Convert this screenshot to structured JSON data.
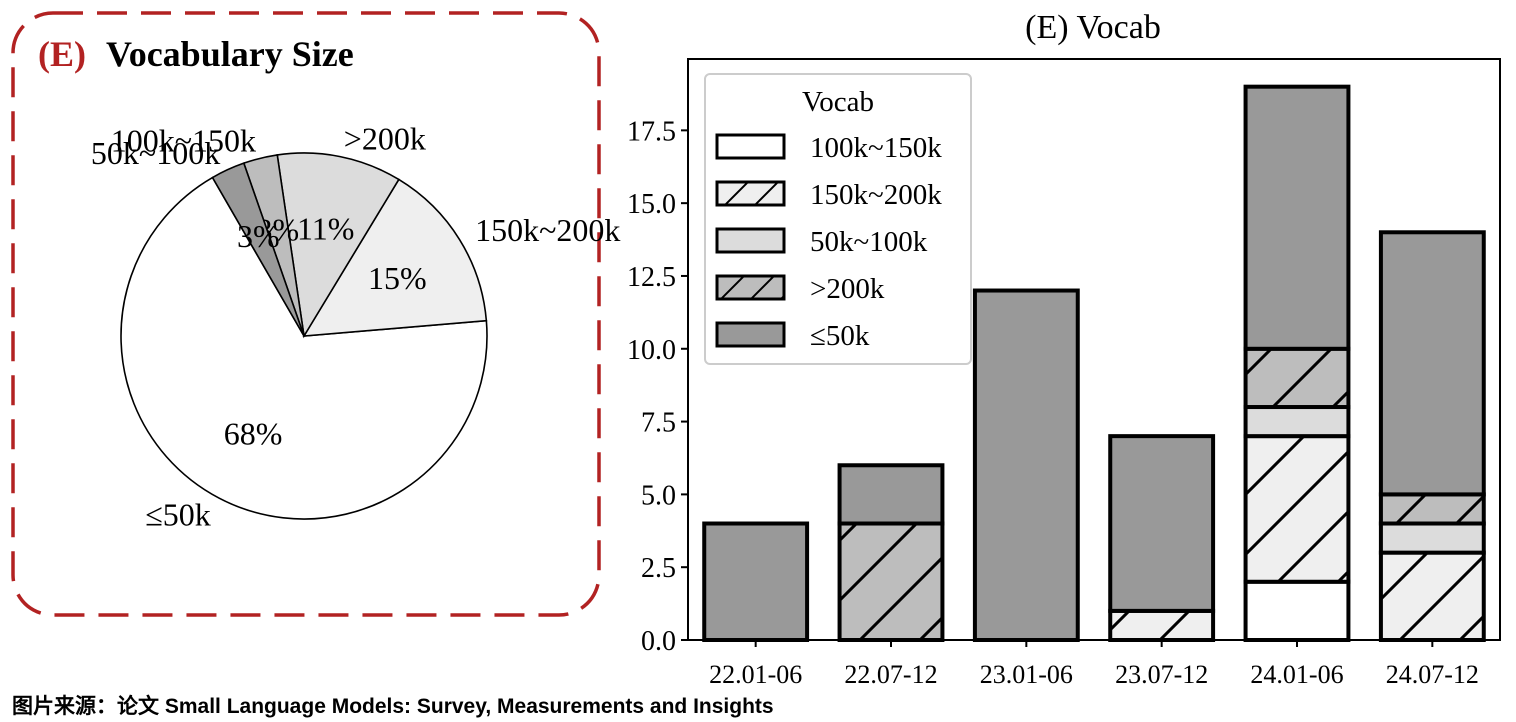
{
  "colors": {
    "frame_accent": "#b22222",
    "series": {
      "100k~150k": "#ffffff",
      "150k~200k": "#efefef",
      "50k~100k": "#dcdcdc",
      ">200k": "#bdbdbd",
      "≤50k": "#999999"
    }
  },
  "panel_title": {
    "tag": "(E)",
    "text": "Vocabulary Size"
  },
  "caption": "图片来源：论文 Small Language Models: Survey, Measurements and Insights",
  "chart_data": [
    {
      "type": "pie",
      "title": "Vocabulary Size",
      "start_angle": 120,
      "direction": "counterclockwise",
      "slices": [
        {
          "label": "≤50k",
          "value": 68,
          "pct_label": "68%",
          "color": "#ffffff"
        },
        {
          "label": "150k~200k",
          "value": 15,
          "pct_label": "15%",
          "color": "#efefef"
        },
        {
          "label": ">200k",
          "value": 11,
          "pct_label": "11%",
          "color": "#dcdcdc"
        },
        {
          "label": "100k~150k",
          "value": 3,
          "pct_label": "3%",
          "color": "#bdbdbd"
        },
        {
          "label": "50k~100k",
          "value": 3,
          "pct_label": "3%",
          "color": "#999999"
        }
      ]
    },
    {
      "type": "bar",
      "stacked": true,
      "title": "(E) Vocab",
      "xlabel": "",
      "ylabel": "",
      "categories": [
        "22.01-06",
        "22.07-12",
        "23.01-06",
        "23.07-12",
        "24.01-06",
        "24.07-12"
      ],
      "ylim": [
        0,
        19.95
      ],
      "yticks": [
        "0.0",
        "2.5",
        "5.0",
        "7.5",
        "10.0",
        "12.5",
        "15.0",
        "17.5"
      ],
      "legend": {
        "title": "Vocab",
        "position": "top-left"
      },
      "series": [
        {
          "name": "100k~150k",
          "values": [
            0,
            0,
            0,
            0,
            2,
            0
          ],
          "color": "#ffffff",
          "hatch": false
        },
        {
          "name": "150k~200k",
          "values": [
            0,
            0,
            0,
            1,
            5,
            3
          ],
          "color": "#efefef",
          "hatch": true
        },
        {
          "name": "50k~100k",
          "values": [
            0,
            0,
            0,
            0,
            1,
            1
          ],
          "color": "#dcdcdc",
          "hatch": false
        },
        {
          "name": ">200k",
          "values": [
            0,
            4,
            0,
            0,
            2,
            1
          ],
          "color": "#bdbdbd",
          "hatch": true
        },
        {
          "name": "≤50k",
          "values": [
            4,
            2,
            12,
            6,
            9,
            9
          ],
          "color": "#999999",
          "hatch": false
        }
      ]
    }
  ]
}
